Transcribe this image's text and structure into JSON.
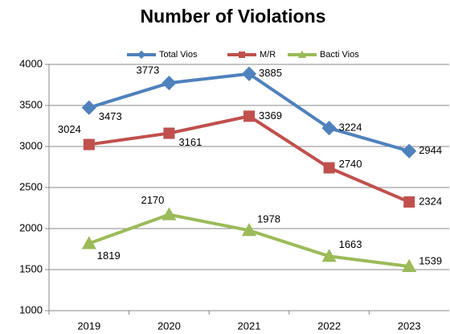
{
  "chart_data": {
    "type": "line",
    "title": "Number of Violations",
    "categories": [
      "2019",
      "2020",
      "2021",
      "2022",
      "2023"
    ],
    "series": [
      {
        "name": "Total Vios",
        "color": "#4f81bd",
        "marker": "diamond",
        "values": [
          3473,
          3773,
          3885,
          3224,
          2944
        ]
      },
      {
        "name": "M/R",
        "color": "#c0504d",
        "marker": "square",
        "values": [
          3024,
          3161,
          3369,
          2740,
          2324
        ]
      },
      {
        "name": "Bacti Vios",
        "color": "#9bbb59",
        "marker": "triangle",
        "values": [
          1819,
          2170,
          1978,
          1663,
          1539
        ]
      }
    ],
    "ylim": [
      1000,
      4000
    ],
    "yticks": [
      1000,
      1500,
      2000,
      2500,
      3000,
      3500,
      4000
    ],
    "grid": true,
    "legend": "top"
  }
}
